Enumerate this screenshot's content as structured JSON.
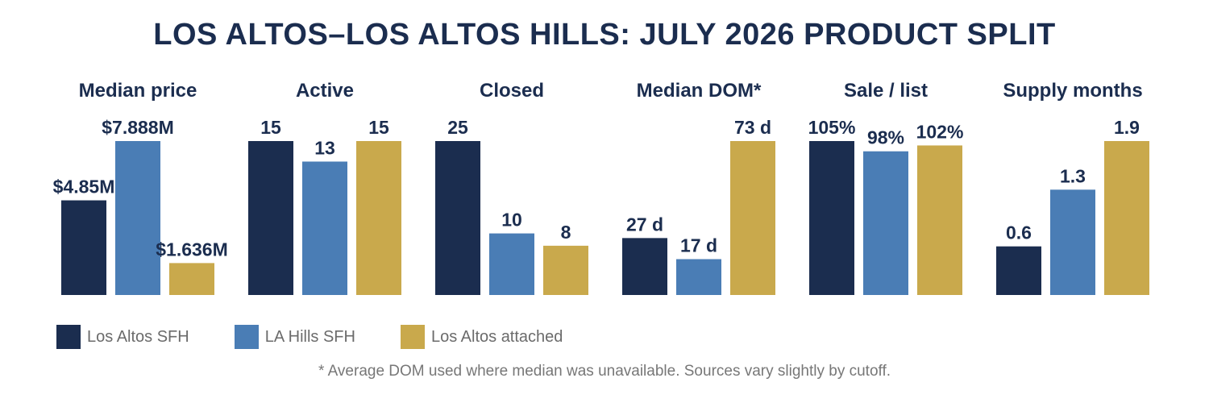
{
  "title": "LOS ALTOS–LOS ALTOS HILLS: JULY 2026 PRODUCT SPLIT",
  "footnote": "* Average DOM used where median was unavailable. Sources vary slightly by cutoff.",
  "colors": {
    "Los Altos SFH": "#1b2d4f",
    "LA Hills SFH": "#4a7db5",
    "Los Altos attached": "#c9a94c",
    "text": "#1b2d4f"
  },
  "legend": [
    {
      "label": "Los Altos SFH",
      "color": "#1b2d4f"
    },
    {
      "label": "LA Hills SFH",
      "color": "#4a7db5"
    },
    {
      "label": "Los Altos attached",
      "color": "#c9a94c"
    }
  ],
  "chart_data": [
    {
      "type": "bar",
      "title": "Median price",
      "categories": [
        "Los Altos SFH",
        "LA Hills SFH",
        "Los Altos attached"
      ],
      "values": [
        4.85,
        7.888,
        1.636
      ],
      "labels": [
        "$4.85M",
        "$7.888M",
        "$1.636M"
      ],
      "ylim": [
        0,
        7.888
      ]
    },
    {
      "type": "bar",
      "title": "Active",
      "categories": [
        "Los Altos SFH",
        "LA Hills SFH",
        "Los Altos attached"
      ],
      "values": [
        15,
        13,
        15
      ],
      "labels": [
        "15",
        "13",
        "15"
      ],
      "ylim": [
        0,
        15
      ]
    },
    {
      "type": "bar",
      "title": "Closed",
      "categories": [
        "Los Altos SFH",
        "LA Hills SFH",
        "Los Altos attached"
      ],
      "values": [
        25,
        10,
        8
      ],
      "labels": [
        "25",
        "10",
        "8"
      ],
      "ylim": [
        0,
        25
      ]
    },
    {
      "type": "bar",
      "title": "Median DOM*",
      "categories": [
        "Los Altos SFH",
        "LA Hills SFH",
        "Los Altos attached"
      ],
      "values": [
        27,
        17,
        73
      ],
      "labels": [
        "27 d",
        "17 d",
        "73 d"
      ],
      "ylim": [
        0,
        73
      ]
    },
    {
      "type": "bar",
      "title": "Sale / list",
      "categories": [
        "Los Altos SFH",
        "LA Hills SFH",
        "Los Altos attached"
      ],
      "values": [
        105,
        98,
        102
      ],
      "labels": [
        "105%",
        "98%",
        "102%"
      ],
      "ylim": [
        0,
        105
      ]
    },
    {
      "type": "bar",
      "title": "Supply months",
      "categories": [
        "Los Altos SFH",
        "LA Hills SFH",
        "Los Altos attached"
      ],
      "values": [
        0.6,
        1.3,
        1.9
      ],
      "labels": [
        "0.6",
        "1.3",
        "1.9"
      ],
      "ylim": [
        0,
        1.9
      ]
    }
  ]
}
